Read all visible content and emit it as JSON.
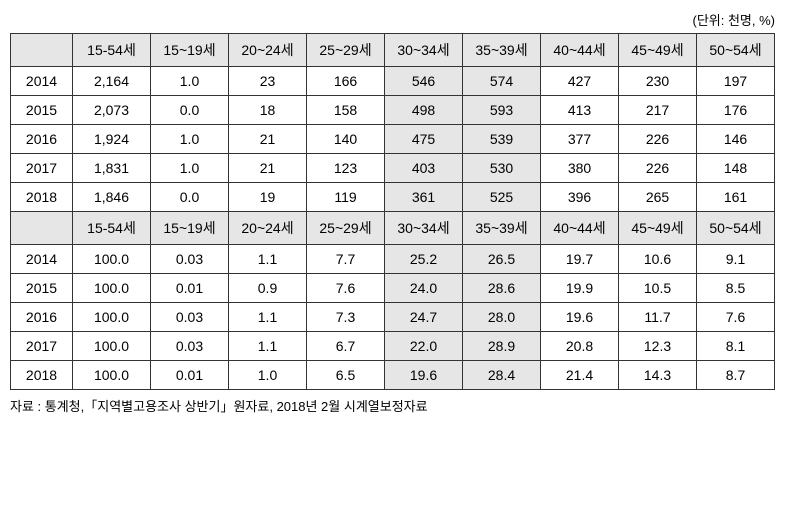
{
  "unit_label": "(단위: 천명, %)",
  "columns": [
    "",
    "15-54세",
    "15~19세",
    "20~24세",
    "25~29세",
    "30~34세",
    "35~39세",
    "40~44세",
    "45~49세",
    "50~54세"
  ],
  "highlight_cols": [
    5,
    6
  ],
  "section1": {
    "rows": [
      {
        "year": "2014",
        "vals": [
          "2,164",
          "1.0",
          "23",
          "166",
          "546",
          "574",
          "427",
          "230",
          "197"
        ]
      },
      {
        "year": "2015",
        "vals": [
          "2,073",
          "0.0",
          "18",
          "158",
          "498",
          "593",
          "413",
          "217",
          "176"
        ]
      },
      {
        "year": "2016",
        "vals": [
          "1,924",
          "1.0",
          "21",
          "140",
          "475",
          "539",
          "377",
          "226",
          "146"
        ]
      },
      {
        "year": "2017",
        "vals": [
          "1,831",
          "1.0",
          "21",
          "123",
          "403",
          "530",
          "380",
          "226",
          "148"
        ]
      },
      {
        "year": "2018",
        "vals": [
          "1,846",
          "0.0",
          "19",
          "119",
          "361",
          "525",
          "396",
          "265",
          "161"
        ]
      }
    ]
  },
  "section2": {
    "rows": [
      {
        "year": "2014",
        "vals": [
          "100.0",
          "0.03",
          "1.1",
          "7.7",
          "25.2",
          "26.5",
          "19.7",
          "10.6",
          "9.1"
        ]
      },
      {
        "year": "2015",
        "vals": [
          "100.0",
          "0.01",
          "0.9",
          "7.6",
          "24.0",
          "28.6",
          "19.9",
          "10.5",
          "8.5"
        ]
      },
      {
        "year": "2016",
        "vals": [
          "100.0",
          "0.03",
          "1.1",
          "7.3",
          "24.7",
          "28.0",
          "19.6",
          "11.7",
          "7.6"
        ]
      },
      {
        "year": "2017",
        "vals": [
          "100.0",
          "0.03",
          "1.1",
          "6.7",
          "22.0",
          "28.9",
          "20.8",
          "12.3",
          "8.1"
        ]
      },
      {
        "year": "2018",
        "vals": [
          "100.0",
          "0.01",
          "1.0",
          "6.5",
          "19.6",
          "28.4",
          "21.4",
          "14.3",
          "8.7"
        ]
      }
    ]
  },
  "source_label": "자료 : 통계청,「지역별고용조사 상반기」원자료, 2018년 2월 시계열보정자료",
  "style": {
    "font_family": "Malgun Gothic",
    "font_size_pt": 14,
    "header_bg": "#e6e6e6",
    "highlight_bg": "#e6e6e6",
    "border_color": "#333333",
    "text_color": "#000000",
    "background_color": "#ffffff"
  }
}
